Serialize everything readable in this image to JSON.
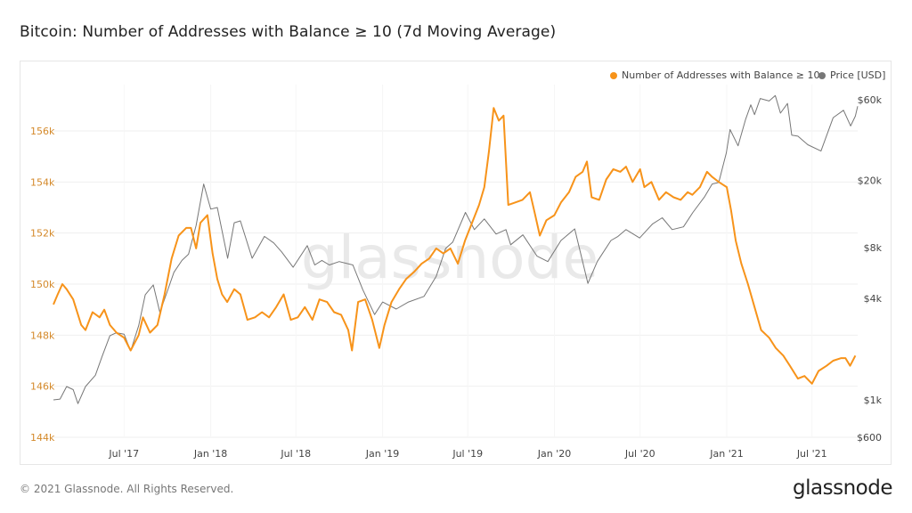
{
  "title": "Bitcoin: Number of Addresses with Balance ≥ 10 (7d Moving Average)",
  "footer": "© 2021 Glassnode. All Rights Reserved.",
  "logo": "glassnode",
  "watermark": "glassnode",
  "colors": {
    "addresses": "#f7931a",
    "price": "#777777",
    "left_axis": "#d4892a",
    "grid": "#efefef"
  },
  "chart_data": {
    "type": "line",
    "title": "Bitcoin: Number of Addresses with Balance ≥ 10 (7d Moving Average)",
    "grid": true,
    "legend_placement": "top-right",
    "x_range": [
      "2017-02-01",
      "2021-10-06"
    ],
    "x_ticks": [
      {
        "date": "2017-07-01",
        "label": "Jul '17"
      },
      {
        "date": "2018-01-01",
        "label": "Jan '18"
      },
      {
        "date": "2018-07-01",
        "label": "Jul '18"
      },
      {
        "date": "2019-01-01",
        "label": "Jan '19"
      },
      {
        "date": "2019-07-01",
        "label": "Jul '19"
      },
      {
        "date": "2020-01-01",
        "label": "Jan '20"
      },
      {
        "date": "2020-07-01",
        "label": "Jul '20"
      },
      {
        "date": "2021-01-01",
        "label": "Jan '21"
      },
      {
        "date": "2021-07-01",
        "label": "Jul '21"
      }
    ],
    "y_left": {
      "scale": "linear",
      "range": [
        144000,
        157800
      ],
      "ticks": [
        {
          "v": 144000,
          "label": "144k"
        },
        {
          "v": 146000,
          "label": "146k"
        },
        {
          "v": 148000,
          "label": "148k"
        },
        {
          "v": 150000,
          "label": "150k"
        },
        {
          "v": 152000,
          "label": "152k"
        },
        {
          "v": 154000,
          "label": "154k"
        },
        {
          "v": 156000,
          "label": "156k"
        }
      ]
    },
    "y_right": {
      "scale": "log",
      "range": [
        600,
        60000
      ],
      "ticks": [
        {
          "v": 600,
          "label": "$600"
        },
        {
          "v": 1000,
          "label": "$1k"
        },
        {
          "v": 4000,
          "label": "$4k"
        },
        {
          "v": 8000,
          "label": "$8k"
        },
        {
          "v": 20000,
          "label": "$20k"
        },
        {
          "v": 60000,
          "label": "$60k"
        }
      ]
    },
    "series": [
      {
        "name": "Number of Addresses with Balance ≥ 10",
        "axis": "left",
        "color": "#f7931a",
        "points": [
          [
            "2017-02-01",
            149200
          ],
          [
            "2017-02-10",
            149600
          ],
          [
            "2017-02-20",
            150000
          ],
          [
            "2017-03-01",
            149800
          ],
          [
            "2017-03-15",
            149400
          ],
          [
            "2017-04-01",
            148400
          ],
          [
            "2017-04-10",
            148200
          ],
          [
            "2017-04-25",
            148900
          ],
          [
            "2017-05-10",
            148700
          ],
          [
            "2017-05-20",
            149000
          ],
          [
            "2017-06-01",
            148400
          ],
          [
            "2017-06-15",
            148100
          ],
          [
            "2017-07-01",
            147900
          ],
          [
            "2017-07-15",
            147400
          ],
          [
            "2017-08-01",
            148000
          ],
          [
            "2017-08-10",
            148700
          ],
          [
            "2017-08-25",
            148100
          ],
          [
            "2017-09-10",
            148400
          ],
          [
            "2017-09-25",
            149600
          ],
          [
            "2017-10-10",
            151000
          ],
          [
            "2017-10-25",
            151900
          ],
          [
            "2017-11-10",
            152200
          ],
          [
            "2017-11-20",
            152200
          ],
          [
            "2017-12-01",
            151400
          ],
          [
            "2017-12-10",
            152400
          ],
          [
            "2017-12-25",
            152700
          ],
          [
            "2018-01-05",
            151200
          ],
          [
            "2018-01-15",
            150200
          ],
          [
            "2018-01-25",
            149600
          ],
          [
            "2018-02-05",
            149300
          ],
          [
            "2018-02-20",
            149800
          ],
          [
            "2018-03-05",
            149600
          ],
          [
            "2018-03-20",
            148600
          ],
          [
            "2018-04-05",
            148700
          ],
          [
            "2018-04-20",
            148900
          ],
          [
            "2018-05-05",
            148700
          ],
          [
            "2018-05-20",
            149100
          ],
          [
            "2018-06-05",
            149600
          ],
          [
            "2018-06-20",
            148600
          ],
          [
            "2018-07-05",
            148700
          ],
          [
            "2018-07-20",
            149100
          ],
          [
            "2018-08-05",
            148600
          ],
          [
            "2018-08-20",
            149400
          ],
          [
            "2018-09-05",
            149300
          ],
          [
            "2018-09-20",
            148900
          ],
          [
            "2018-10-05",
            148800
          ],
          [
            "2018-10-20",
            148200
          ],
          [
            "2018-10-28",
            147400
          ],
          [
            "2018-11-10",
            149300
          ],
          [
            "2018-11-25",
            149400
          ],
          [
            "2018-12-10",
            148600
          ],
          [
            "2018-12-25",
            147500
          ],
          [
            "2019-01-05",
            148400
          ],
          [
            "2019-01-20",
            149300
          ],
          [
            "2019-02-05",
            149800
          ],
          [
            "2019-02-20",
            150200
          ],
          [
            "2019-03-10",
            150500
          ],
          [
            "2019-03-25",
            150800
          ],
          [
            "2019-04-10",
            151000
          ],
          [
            "2019-04-25",
            151400
          ],
          [
            "2019-05-10",
            151200
          ],
          [
            "2019-05-25",
            151400
          ],
          [
            "2019-06-10",
            150800
          ],
          [
            "2019-06-25",
            151700
          ],
          [
            "2019-07-10",
            152400
          ],
          [
            "2019-07-25",
            153100
          ],
          [
            "2019-08-05",
            153800
          ],
          [
            "2019-08-15",
            155200
          ],
          [
            "2019-08-25",
            156900
          ],
          [
            "2019-09-05",
            156400
          ],
          [
            "2019-09-15",
            156600
          ],
          [
            "2019-09-25",
            153100
          ],
          [
            "2019-10-10",
            153200
          ],
          [
            "2019-10-25",
            153300
          ],
          [
            "2019-11-10",
            153600
          ],
          [
            "2019-11-20",
            152800
          ],
          [
            "2019-12-01",
            151900
          ],
          [
            "2019-12-15",
            152500
          ],
          [
            "2020-01-01",
            152700
          ],
          [
            "2020-01-15",
            153200
          ],
          [
            "2020-02-01",
            153600
          ],
          [
            "2020-02-15",
            154200
          ],
          [
            "2020-03-01",
            154400
          ],
          [
            "2020-03-10",
            154800
          ],
          [
            "2020-03-20",
            153400
          ],
          [
            "2020-04-05",
            153300
          ],
          [
            "2020-04-20",
            154100
          ],
          [
            "2020-05-05",
            154500
          ],
          [
            "2020-05-20",
            154400
          ],
          [
            "2020-06-01",
            154600
          ],
          [
            "2020-06-15",
            154000
          ],
          [
            "2020-07-01",
            154500
          ],
          [
            "2020-07-10",
            153800
          ],
          [
            "2020-07-25",
            154000
          ],
          [
            "2020-08-10",
            153300
          ],
          [
            "2020-08-25",
            153600
          ],
          [
            "2020-09-10",
            153400
          ],
          [
            "2020-09-25",
            153300
          ],
          [
            "2020-10-10",
            153600
          ],
          [
            "2020-10-20",
            153500
          ],
          [
            "2020-11-05",
            153800
          ],
          [
            "2020-11-20",
            154400
          ],
          [
            "2020-12-01",
            154200
          ],
          [
            "2020-12-15",
            154000
          ],
          [
            "2021-01-01",
            153800
          ],
          [
            "2021-01-10",
            152900
          ],
          [
            "2021-01-20",
            151700
          ],
          [
            "2021-02-01",
            150800
          ],
          [
            "2021-02-15",
            150000
          ],
          [
            "2021-03-01",
            149100
          ],
          [
            "2021-03-15",
            148200
          ],
          [
            "2021-04-01",
            147900
          ],
          [
            "2021-04-15",
            147500
          ],
          [
            "2021-05-01",
            147200
          ],
          [
            "2021-05-15",
            146800
          ],
          [
            "2021-06-01",
            146300
          ],
          [
            "2021-06-15",
            146400
          ],
          [
            "2021-07-01",
            146100
          ],
          [
            "2021-07-15",
            146600
          ],
          [
            "2021-08-01",
            146800
          ],
          [
            "2021-08-15",
            147000
          ],
          [
            "2021-09-01",
            147100
          ],
          [
            "2021-09-10",
            147100
          ],
          [
            "2021-09-20",
            146800
          ],
          [
            "2021-10-01",
            147200
          ]
        ]
      },
      {
        "name": "Price [USD]",
        "axis": "right",
        "color": "#777777",
        "points": [
          [
            "2017-02-01",
            1000
          ],
          [
            "2017-02-15",
            1010
          ],
          [
            "2017-03-01",
            1200
          ],
          [
            "2017-03-15",
            1150
          ],
          [
            "2017-03-25",
            950
          ],
          [
            "2017-04-10",
            1200
          ],
          [
            "2017-05-01",
            1400
          ],
          [
            "2017-05-15",
            1800
          ],
          [
            "2017-06-01",
            2400
          ],
          [
            "2017-06-15",
            2500
          ],
          [
            "2017-07-01",
            2450
          ],
          [
            "2017-07-15",
            1950
          ],
          [
            "2017-08-01",
            2750
          ],
          [
            "2017-08-15",
            4200
          ],
          [
            "2017-09-01",
            4800
          ],
          [
            "2017-09-15",
            3300
          ],
          [
            "2017-10-01",
            4400
          ],
          [
            "2017-10-15",
            5700
          ],
          [
            "2017-11-01",
            6700
          ],
          [
            "2017-11-15",
            7300
          ],
          [
            "2017-12-01",
            10800
          ],
          [
            "2017-12-17",
            19000
          ],
          [
            "2018-01-01",
            13500
          ],
          [
            "2018-01-15",
            13800
          ],
          [
            "2018-02-06",
            6900
          ],
          [
            "2018-02-20",
            11200
          ],
          [
            "2018-03-05",
            11500
          ],
          [
            "2018-03-30",
            6900
          ],
          [
            "2018-04-25",
            9300
          ],
          [
            "2018-05-15",
            8500
          ],
          [
            "2018-06-01",
            7500
          ],
          [
            "2018-06-25",
            6100
          ],
          [
            "2018-07-25",
            8200
          ],
          [
            "2018-08-10",
            6300
          ],
          [
            "2018-08-25",
            6700
          ],
          [
            "2018-09-10",
            6300
          ],
          [
            "2018-10-01",
            6600
          ],
          [
            "2018-10-30",
            6300
          ],
          [
            "2018-11-20",
            4500
          ],
          [
            "2018-12-15",
            3200
          ],
          [
            "2019-01-01",
            3800
          ],
          [
            "2019-01-30",
            3450
          ],
          [
            "2019-02-25",
            3800
          ],
          [
            "2019-03-30",
            4100
          ],
          [
            "2019-04-25",
            5400
          ],
          [
            "2019-05-15",
            7900
          ],
          [
            "2019-05-30",
            8600
          ],
          [
            "2019-06-26",
            12900
          ],
          [
            "2019-07-15",
            10200
          ],
          [
            "2019-08-05",
            11800
          ],
          [
            "2019-08-30",
            9600
          ],
          [
            "2019-09-20",
            10200
          ],
          [
            "2019-09-30",
            8300
          ],
          [
            "2019-10-26",
            9500
          ],
          [
            "2019-11-25",
            7100
          ],
          [
            "2019-12-18",
            6600
          ],
          [
            "2020-01-15",
            8800
          ],
          [
            "2020-02-13",
            10300
          ],
          [
            "2020-03-12",
            4900
          ],
          [
            "2020-04-01",
            6600
          ],
          [
            "2020-04-30",
            8800
          ],
          [
            "2020-05-15",
            9300
          ],
          [
            "2020-06-01",
            10200
          ],
          [
            "2020-06-30",
            9100
          ],
          [
            "2020-07-27",
            11000
          ],
          [
            "2020-08-17",
            12000
          ],
          [
            "2020-09-07",
            10200
          ],
          [
            "2020-10-01",
            10600
          ],
          [
            "2020-10-21",
            12900
          ],
          [
            "2020-11-15",
            16000
          ],
          [
            "2020-12-01",
            19000
          ],
          [
            "2020-12-15",
            19400
          ],
          [
            "2020-12-31",
            29000
          ],
          [
            "2021-01-08",
            40000
          ],
          [
            "2021-01-25",
            32000
          ],
          [
            "2021-02-10",
            46000
          ],
          [
            "2021-02-21",
            56000
          ],
          [
            "2021-03-01",
            49000
          ],
          [
            "2021-03-13",
            61000
          ],
          [
            "2021-04-01",
            59000
          ],
          [
            "2021-04-14",
            63500
          ],
          [
            "2021-04-25",
            50000
          ],
          [
            "2021-05-10",
            57000
          ],
          [
            "2021-05-19",
            37000
          ],
          [
            "2021-06-01",
            36500
          ],
          [
            "2021-06-22",
            32500
          ],
          [
            "2021-07-20",
            29800
          ],
          [
            "2021-08-15",
            47000
          ],
          [
            "2021-09-06",
            52000
          ],
          [
            "2021-09-21",
            42000
          ],
          [
            "2021-10-01",
            48000
          ],
          [
            "2021-10-06",
            55000
          ]
        ]
      }
    ]
  }
}
